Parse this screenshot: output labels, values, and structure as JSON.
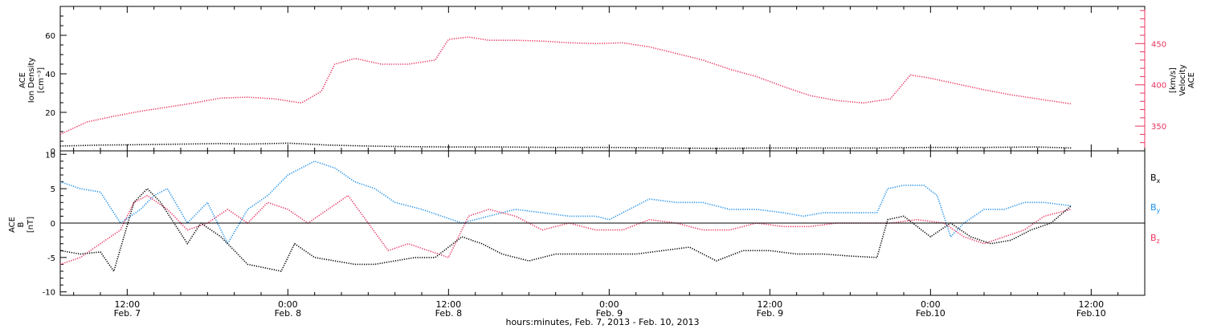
{
  "colors": {
    "axis": "#000000",
    "density": "#000000",
    "velocity": "#e8335f",
    "bx": "#000000",
    "by": "#1f8fe8",
    "bz": "#e8335f"
  },
  "x_axis": {
    "title": "hours:minutes, Feb. 7, 2013 - Feb. 10, 2013",
    "ticks": [
      {
        "hour": 12,
        "time": "12:00",
        "date": "Feb. 7"
      },
      {
        "hour": 24,
        "time": "0:00",
        "date": "Feb. 8"
      },
      {
        "hour": 36,
        "time": "12:00",
        "date": "Feb. 8"
      },
      {
        "hour": 48,
        "time": "0:00",
        "date": "Feb. 9"
      },
      {
        "hour": 60,
        "time": "12:00",
        "date": "Feb. 9"
      },
      {
        "hour": 72,
        "time": "0:00",
        "date": "Feb.10"
      },
      {
        "hour": 84,
        "time": "12:00",
        "date": "Feb.10"
      }
    ]
  },
  "chart_data": [
    {
      "type": "scatter",
      "panel": "top",
      "x_range_hours_from_feb7_0000": [
        7,
        88
      ],
      "ylabel_left": [
        "ACE",
        "Ion Density",
        "[cm⁻³]"
      ],
      "ylim_left": [
        0,
        75
      ],
      "yticks_left": [
        0,
        20,
        40,
        60
      ],
      "ylabel_right": [
        "ACE",
        "Velocity",
        "[km/s]"
      ],
      "ylim_right": [
        320,
        495
      ],
      "yticks_right": [
        350,
        400,
        450
      ],
      "series": [
        {
          "axis": "left",
          "x": [
            7,
            10,
            13,
            16,
            19,
            21,
            24,
            27,
            30,
            33,
            36,
            40,
            44,
            48,
            52,
            56,
            60,
            64,
            68,
            72,
            76,
            80,
            82.5
          ],
          "values": [
            2.5,
            3,
            3.2,
            3.5,
            3.8,
            3.5,
            4,
            3,
            2.5,
            2.2,
            2,
            2,
            1.8,
            1.8,
            1.5,
            1.3,
            1.5,
            1.5,
            1.5,
            1.8,
            1.8,
            2,
            1.5
          ]
        },
        {
          "axis": "right",
          "x": [
            7,
            9,
            11,
            13,
            15,
            17,
            19,
            21,
            23,
            25,
            26.5,
            27.5,
            29,
            31,
            33,
            35,
            36,
            37.5,
            39,
            41,
            43,
            45,
            47,
            49,
            51,
            53,
            55,
            57,
            59,
            61,
            63,
            65,
            67,
            69,
            70.5,
            72,
            74,
            76,
            78,
            80,
            82.5
          ],
          "values": [
            340,
            355,
            362,
            368,
            373,
            378,
            384,
            385,
            383,
            378,
            392,
            425,
            432,
            425,
            425,
            430,
            455,
            458,
            454,
            454,
            453,
            451,
            450,
            451,
            446,
            438,
            430,
            419,
            410,
            398,
            387,
            381,
            378,
            383,
            412,
            408,
            401,
            394,
            388,
            383,
            377
          ]
        }
      ]
    },
    {
      "type": "scatter",
      "panel": "bottom",
      "x_range_hours_from_feb7_0000": [
        7,
        88
      ],
      "ylabel": [
        "ACE",
        "B",
        "[nT]"
      ],
      "ylim": [
        -10.5,
        10.5
      ],
      "yticks": [
        -10,
        -5,
        0,
        5,
        10
      ],
      "zero_line": true,
      "legend_placement": "right",
      "series": [
        {
          "name": "Bx",
          "x": [
            7,
            8.5,
            10,
            11,
            12.5,
            13.5,
            14.5,
            16.5,
            17.5,
            19,
            21,
            23.5,
            24.5,
            26,
            27.5,
            29,
            30.5,
            32,
            33.5,
            35,
            37,
            38.5,
            40,
            42,
            44,
            46,
            48,
            50,
            52,
            54,
            56,
            58,
            60,
            62,
            64,
            66,
            68,
            68.8,
            70,
            72,
            73.5,
            75,
            76.5,
            78,
            79.5,
            81,
            82.5
          ],
          "values": [
            -4,
            -4.5,
            -4.2,
            -7,
            3,
            5,
            3,
            -3,
            0,
            -2,
            -6,
            -7,
            -3,
            -5,
            -5.5,
            -6,
            -6,
            -5.5,
            -5,
            -5,
            -2,
            -3,
            -4.5,
            -5.5,
            -4.5,
            -4.5,
            -4.5,
            -4.5,
            -4,
            -3.5,
            -5.5,
            -4,
            -4,
            -4.5,
            -4.5,
            -4.8,
            -5,
            0.5,
            1,
            -2,
            0,
            -2,
            -3,
            -2.5,
            -1,
            0,
            2.5
          ]
        },
        {
          "name": "By",
          "x": [
            7,
            8.5,
            10,
            11.5,
            13,
            14,
            15,
            16.5,
            18,
            19.5,
            21,
            22.5,
            24,
            26,
            27.5,
            29,
            30.5,
            32,
            34,
            35.5,
            37,
            39,
            41,
            43,
            45,
            47,
            48,
            49.5,
            51,
            53,
            55,
            57,
            59,
            61,
            62.5,
            64,
            66,
            68,
            68.8,
            70,
            71.5,
            72.5,
            73.5,
            74.5,
            76,
            77.5,
            79,
            80.5,
            82.5
          ],
          "values": [
            6,
            5,
            4.5,
            0,
            2,
            4,
            5,
            0,
            3,
            -3,
            2,
            4,
            7,
            9,
            8,
            6,
            5,
            3,
            2,
            1,
            0,
            1,
            2,
            1.5,
            1,
            1,
            0.5,
            2,
            3.5,
            3,
            3,
            2,
            2,
            1.5,
            1,
            1.5,
            1.5,
            1.5,
            5,
            5.5,
            5.5,
            4,
            -2,
            0,
            2,
            2,
            3,
            3,
            2.5
          ]
        },
        {
          "name": "Bz",
          "x": [
            7,
            8.5,
            10,
            11.5,
            12.5,
            13.5,
            15,
            16.5,
            18,
            19.5,
            21,
            22.5,
            24,
            25.5,
            27,
            28.5,
            30,
            31.5,
            33,
            34.5,
            36,
            37.5,
            39,
            41,
            43,
            45,
            47,
            49,
            51,
            53,
            55,
            57,
            59,
            61,
            63,
            65,
            67,
            69,
            71,
            73,
            74.5,
            76,
            77.5,
            79,
            80.5,
            82.5
          ],
          "values": [
            -6,
            -5,
            -3,
            -1,
            3,
            4,
            2,
            -1,
            0,
            2,
            0,
            3,
            2,
            0,
            2,
            4,
            0,
            -4,
            -3,
            -4,
            -5,
            1,
            2,
            1,
            -1,
            0,
            -1,
            -1,
            0.5,
            0,
            -1,
            -1,
            0,
            -0.5,
            -0.5,
            0,
            0,
            0,
            0.5,
            0,
            -2,
            -3,
            -2,
            -1,
            1,
            2
          ]
        }
      ]
    }
  ]
}
